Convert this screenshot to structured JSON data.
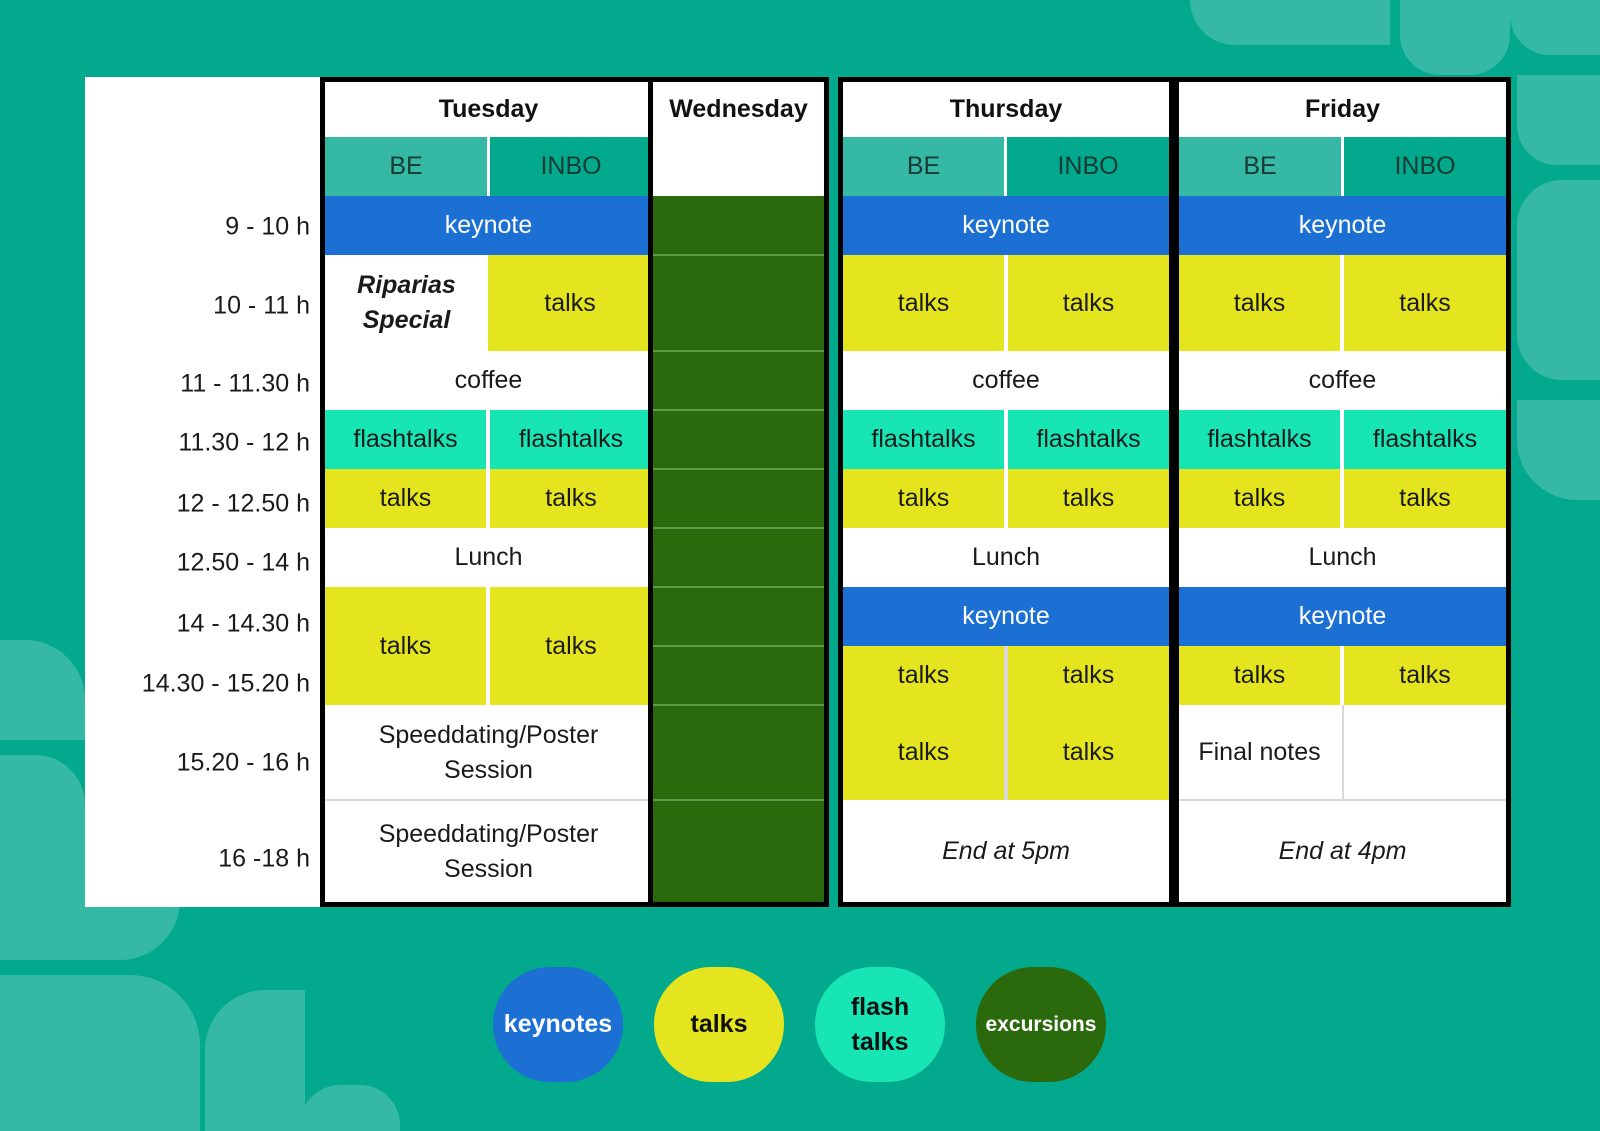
{
  "times": [
    "9 - 10 h",
    "10 - 11 h",
    "11 - 11.30 h",
    "11.30 - 12 h",
    "12 - 12.50 h",
    "12.50 - 14 h",
    "14 - 14.30 h",
    "14.30 - 15.20 h",
    "15.20 - 16 h",
    "16 -18 h"
  ],
  "days": {
    "tuesday": {
      "name": "Tuesday",
      "sub_be": "BE",
      "sub_inbo": "INBO",
      "keynote": "keynote",
      "special_line1": "Riparias",
      "special_line2": "Special",
      "talks_1011": "talks",
      "coffee": "coffee",
      "flash_be": "flashtalks",
      "flash_inbo": "flashtalks",
      "talks_12_be": "talks",
      "talks_12_inbo": "talks",
      "lunch": "Lunch",
      "talks_14_be": "talks",
      "talks_14_inbo": "talks",
      "poster_1520_line1": "Speeddating/Poster",
      "poster_1520_line2": "Session",
      "poster_16_line1": "Speeddating/Poster",
      "poster_16_line2": "Session"
    },
    "wednesday": {
      "name": "Wednesday"
    },
    "thursday": {
      "name": "Thursday",
      "sub_be": "BE",
      "sub_inbo": "INBO",
      "keynote": "keynote",
      "talks_10_be": "talks",
      "talks_10_inbo": "talks",
      "coffee": "coffee",
      "flash_be": "flashtalks",
      "flash_inbo": "flashtalks",
      "talks_12_be": "talks",
      "talks_12_inbo": "talks",
      "lunch": "Lunch",
      "keynote_14": "keynote",
      "talks_1430_be": "talks",
      "talks_1430_inbo": "talks",
      "talks_1520_be": "talks",
      "talks_1520_inbo": "talks",
      "end": "End at 5pm"
    },
    "friday": {
      "name": "Friday",
      "sub_be": "BE",
      "sub_inbo": "INBO",
      "keynote": "keynote",
      "talks_10_be": "talks",
      "talks_10_inbo": "talks",
      "coffee": "coffee",
      "flash_be": "flashtalks",
      "flash_inbo": "flashtalks",
      "talks_12_be": "talks",
      "talks_12_inbo": "talks",
      "lunch": "Lunch",
      "keynote_14": "keynote",
      "talks_1430_be": "talks",
      "talks_1430_inbo": "talks",
      "final_notes": "Final notes",
      "end": "End at 4pm"
    }
  },
  "legend": {
    "keynotes": "keynotes",
    "talks": "talks",
    "flash_line1": "flash",
    "flash_line2": "talks",
    "excursions": "excursions"
  },
  "colors": {
    "background": "#02a98c",
    "keynote": "#1c70d4",
    "talks": "#e4e51e",
    "flashtalks": "#17e5b4",
    "excursions": "#2b6a0c",
    "sub_header_be": "#35b9a4",
    "sub_header_inbo": "#02a98c"
  }
}
